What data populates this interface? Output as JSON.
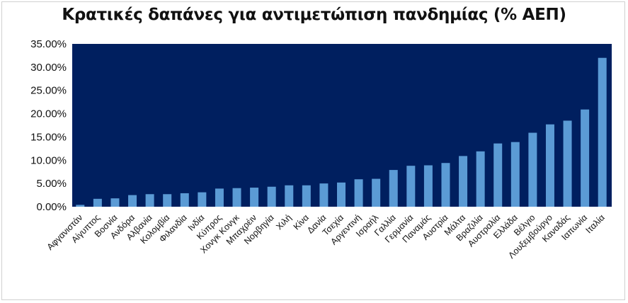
{
  "chart_data": {
    "type": "bar",
    "title": "Κρατικές δαπάνες για αντιμετώπιση πανδημίας (% ΑΕΠ)",
    "xlabel": "",
    "ylabel": "",
    "ylim": [
      0,
      35
    ],
    "yticks": [
      "0.00%",
      "5.00%",
      "10.00%",
      "15.00%",
      "20.00%",
      "25.00%",
      "30.00%",
      "35.00%"
    ],
    "grid": false,
    "legend": "none",
    "colors": {
      "plot_background": "#001F5F",
      "bar": "#5B9BD5"
    },
    "categories": [
      "Αφγανιστάν",
      "Αίγυπτος",
      "Βοσνία",
      "Ανδόρα",
      "Αλβανία",
      "Κολομβία",
      "Φιλανδία",
      "Ινδία",
      "Κύπρος",
      "Χονγκ Κονγκ",
      "Μπαχρέιν",
      "Νορβηγία",
      "Χιλή",
      "Κίνα",
      "Δανία",
      "Τσεχία",
      "Αργεντινή",
      "Ισραήλ",
      "Γαλλία",
      "Γερμανία",
      "Παναμάς",
      "Αυστρία",
      "Μάλτα",
      "Βραζιλία",
      "Αυστραλία",
      "Ελλάδα",
      "Βέλγιο",
      "Λουξεμβούργο",
      "Καναδάς",
      "Ιαπωνία",
      "Ιταλία"
    ],
    "values": [
      0.4,
      1.7,
      1.8,
      2.5,
      2.7,
      2.7,
      2.9,
      3.1,
      3.9,
      4.0,
      4.1,
      4.3,
      4.6,
      4.6,
      5.0,
      5.2,
      5.9,
      6.0,
      7.9,
      8.8,
      8.9,
      9.4,
      10.9,
      11.9,
      13.6,
      13.9,
      15.9,
      17.7,
      18.5,
      20.9,
      32.0
    ]
  }
}
